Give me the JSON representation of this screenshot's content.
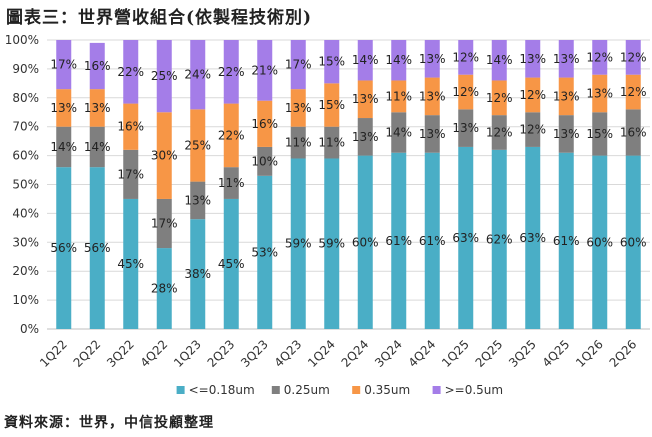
{
  "title": "圖表三：世界營收組合(依製程技術別)",
  "source": "資料來源：世界，中信投顧整理",
  "chart_data": {
    "type": "bar",
    "stacked": true,
    "percent": true,
    "categories": [
      "1Q22",
      "2Q22",
      "3Q22",
      "4Q22",
      "1Q23",
      "2Q23",
      "3Q23",
      "4Q23",
      "1Q24",
      "2Q24",
      "3Q24",
      "4Q24",
      "1Q25",
      "2Q25",
      "3Q25",
      "4Q25",
      "1Q26",
      "2Q26"
    ],
    "series": [
      {
        "name": "<=0.18um",
        "color": "#4aaec6",
        "values": [
          56,
          56,
          45,
          28,
          38,
          45,
          53,
          59,
          59,
          60,
          61,
          61,
          63,
          62,
          63,
          61,
          60,
          60
        ]
      },
      {
        "name": "0.25um",
        "color": "#7f7f7f",
        "values": [
          14,
          14,
          17,
          17,
          13,
          11,
          10,
          11,
          11,
          13,
          14,
          13,
          13,
          12,
          12,
          13,
          15,
          16
        ]
      },
      {
        "name": "0.35um",
        "color": "#f79646",
        "values": [
          13,
          13,
          16,
          30,
          25,
          22,
          16,
          13,
          15,
          13,
          11,
          13,
          12,
          12,
          12,
          13,
          13,
          12
        ]
      },
      {
        "name": ">=0.5um",
        "color": "#a47de8",
        "values": [
          17,
          16,
          22,
          25,
          24,
          22,
          21,
          17,
          15,
          14,
          14,
          13,
          12,
          14,
          13,
          13,
          12,
          12
        ]
      }
    ],
    "labels": [
      [
        "56%",
        "56%",
        "45%",
        "28%",
        "38%",
        "45%",
        "53%",
        "59%",
        "59%",
        "60%",
        "61%",
        "61%",
        "63%",
        "62%",
        "63%",
        "61%",
        "60%",
        "60%"
      ],
      [
        "14%",
        "14%",
        "17%",
        "17%",
        "13%",
        "11%",
        "10%",
        "11%",
        "11%",
        "13%",
        "14%",
        "13%",
        "13%",
        "12%",
        "12%",
        "13%",
        "15%",
        "16%"
      ],
      [
        "13%",
        "13%",
        "16%",
        "30%",
        "25%",
        "22%",
        "16%",
        "13%",
        "15%",
        "13%",
        "11%",
        "13%",
        "12%",
        "12%",
        "12%",
        "13%",
        "13%",
        "12%"
      ],
      [
        "17%",
        "16%",
        "22%",
        "25%",
        "24%",
        "22%",
        "21%",
        "17%",
        "15%",
        "14%",
        "14%",
        "13%",
        "12%",
        "14%",
        "13%",
        "13%",
        "12%",
        "12%"
      ]
    ],
    "ylim": [
      0,
      100
    ],
    "yticks": [
      "0%",
      "10%",
      "20%",
      "30%",
      "40%",
      "50%",
      "60%",
      "70%",
      "80%",
      "90%",
      "100%"
    ],
    "grid": true,
    "legend_position": "bottom"
  }
}
